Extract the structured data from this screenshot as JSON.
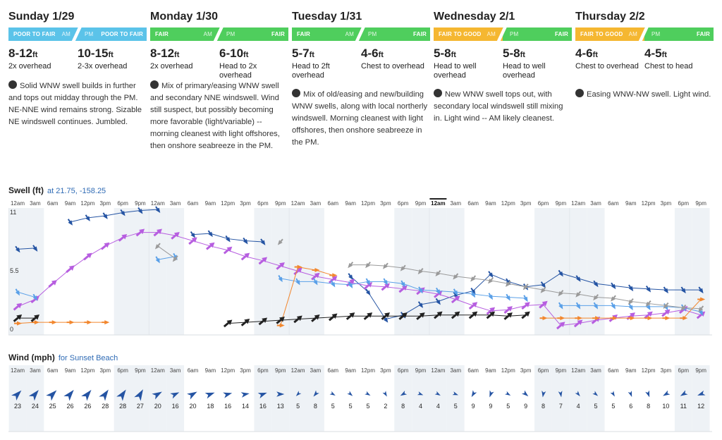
{
  "forecast": {
    "days": [
      {
        "name": "Sunday 1/29",
        "am": {
          "label": "POOR TO FAIR",
          "tag": "AM",
          "color": "#5bc3e9"
        },
        "pm": {
          "label": "POOR TO FAIR",
          "tag": "PM",
          "color": "#5bc3e9"
        },
        "am_size": {
          "range": "8-12",
          "unit": "ft",
          "desc": "2x overhead"
        },
        "pm_size": {
          "range": "10-15",
          "unit": "ft",
          "desc": "2-3x overhead"
        },
        "blurb": "Solid WNW swell builds in further and tops out midday through the PM. NE-NNE wind remains strong. Sizable NE windswell continues. Jumbled."
      },
      {
        "name": "Monday 1/30",
        "am": {
          "label": "FAIR",
          "tag": "AM",
          "color": "#4fce5d"
        },
        "pm": {
          "label": "FAIR",
          "tag": "PM",
          "color": "#4fce5d"
        },
        "am_size": {
          "range": "8-12",
          "unit": "ft",
          "desc": "2x overhead"
        },
        "pm_size": {
          "range": "6-10",
          "unit": "ft",
          "desc": "Head to 2x overhead"
        },
        "blurb": "Mix of primary/easing WNW swell and secondary NNE windswell. Wind still suspect, but possibly becoming more favorable (light/variable) -- morning cleanest with light offshores, then onshore seabreeze in the PM."
      },
      {
        "name": "Tuesday 1/31",
        "am": {
          "label": "FAIR",
          "tag": "AM",
          "color": "#4fce5d"
        },
        "pm": {
          "label": "FAIR",
          "tag": "PM",
          "color": "#4fce5d"
        },
        "am_size": {
          "range": "5-7",
          "unit": "ft",
          "desc": "Head to 2ft overhead"
        },
        "pm_size": {
          "range": "4-6",
          "unit": "ft",
          "desc": "Chest to overhead"
        },
        "blurb": "Mix of old/easing and new/building WNW swells, along with local northerly windswell. Morning cleanest with light offshores, then onshore seabreeze in the PM."
      },
      {
        "name": "Wednesday 2/1",
        "am": {
          "label": "FAIR TO GOOD",
          "tag": "AM",
          "color": "#f5b731"
        },
        "pm": {
          "label": "FAIR",
          "tag": "PM",
          "color": "#4fce5d"
        },
        "am_size": {
          "range": "5-8",
          "unit": "ft",
          "desc": "Head to well overhead"
        },
        "pm_size": {
          "range": "5-8",
          "unit": "ft",
          "desc": "Head to well overhead"
        },
        "blurb": "New WNW swell tops out, with secondary local windswell still mixing in. Light wind -- AM likely cleanest."
      },
      {
        "name": "Thursday 2/2",
        "am": {
          "label": "FAIR TO GOOD",
          "tag": "AM",
          "color": "#f5b731"
        },
        "pm": {
          "label": "FAIR",
          "tag": "PM",
          "color": "#4fce5d"
        },
        "am_size": {
          "range": "4-6",
          "unit": "ft",
          "desc": "Chest to overhead"
        },
        "pm_size": {
          "range": "4-5",
          "unit": "ft",
          "desc": "Chest to head"
        },
        "blurb": "Easing WNW-NW swell. Light wind."
      }
    ]
  },
  "time_labels": [
    "12am",
    "3am",
    "6am",
    "9am",
    "12pm",
    "3pm",
    "6pm",
    "9pm"
  ],
  "current_tick_index": 24,
  "swell": {
    "title": "Swell (ft)",
    "subtitle": "at 21.75, -158.25",
    "y_labels": [
      "11",
      "5.5",
      "0"
    ],
    "ymax": 11,
    "series": [
      {
        "color": "#2554a3",
        "points": [
          [
            0,
            7.6
          ],
          [
            1,
            7.7
          ],
          [
            3,
            10.2
          ],
          [
            4,
            10.6
          ],
          [
            5,
            10.8
          ],
          [
            6,
            11.1
          ],
          [
            7,
            11.3
          ],
          [
            8,
            11.4
          ],
          [
            10,
            9.0
          ],
          [
            11,
            9.1
          ],
          [
            12,
            8.6
          ],
          [
            13,
            8.4
          ],
          [
            14,
            8.3
          ]
        ]
      },
      {
        "color": "#2554a3",
        "points": [
          [
            19,
            5.0
          ],
          [
            20,
            3.5
          ],
          [
            21,
            0.9
          ],
          [
            22,
            1.3
          ],
          [
            23,
            2.3
          ],
          [
            24,
            2.6
          ],
          [
            25,
            3.2
          ],
          [
            26,
            3.6
          ],
          [
            27,
            5.2
          ],
          [
            28,
            4.5
          ],
          [
            29,
            4.0
          ],
          [
            30,
            4.2
          ],
          [
            31,
            5.3
          ],
          [
            32,
            4.8
          ],
          [
            33,
            4.3
          ],
          [
            34,
            4.1
          ],
          [
            35,
            3.9
          ],
          [
            36,
            3.8
          ],
          [
            37,
            3.7
          ],
          [
            38,
            3.7
          ],
          [
            39,
            3.7
          ]
        ]
      },
      {
        "color": "#b75ee0",
        "points": [
          [
            0,
            2.1
          ],
          [
            1,
            2.8
          ],
          [
            2,
            4.3
          ],
          [
            3,
            5.7
          ],
          [
            4,
            6.9
          ],
          [
            5,
            7.9
          ],
          [
            6,
            8.7
          ],
          [
            7,
            9.2
          ],
          [
            8,
            9.2
          ],
          [
            9,
            8.9
          ],
          [
            10,
            8.4
          ],
          [
            11,
            7.9
          ],
          [
            12,
            7.5
          ],
          [
            13,
            6.9
          ],
          [
            14,
            6.5
          ],
          [
            15,
            6.0
          ],
          [
            16,
            5.5
          ],
          [
            17,
            5.0
          ],
          [
            18,
            4.7
          ],
          [
            19,
            4.4
          ],
          [
            20,
            4.1
          ],
          [
            21,
            4.0
          ],
          [
            22,
            3.8
          ],
          [
            23,
            3.6
          ],
          [
            24,
            3.3
          ],
          [
            25,
            2.8
          ],
          [
            26,
            2.2
          ],
          [
            27,
            1.7
          ],
          [
            28,
            1.8
          ],
          [
            29,
            2.2
          ],
          [
            30,
            2.3
          ],
          [
            31,
            0.3
          ],
          [
            32,
            0.5
          ],
          [
            33,
            0.8
          ],
          [
            34,
            1.0
          ],
          [
            35,
            1.2
          ],
          [
            36,
            1.3
          ],
          [
            37,
            1.5
          ],
          [
            38,
            1.8
          ],
          [
            39,
            1.3
          ]
        ]
      },
      {
        "color": "#5aa0e8",
        "points": [
          [
            0,
            3.5
          ],
          [
            1,
            3.0
          ],
          [
            8,
            6.6
          ],
          [
            9,
            6.9
          ],
          [
            15,
            4.8
          ],
          [
            16,
            4.5
          ],
          [
            17,
            4.5
          ],
          [
            18,
            4.3
          ],
          [
            19,
            4.2
          ],
          [
            20,
            4.5
          ],
          [
            21,
            4.5
          ],
          [
            22,
            4.3
          ],
          [
            23,
            3.7
          ],
          [
            24,
            3.6
          ],
          [
            25,
            3.5
          ],
          [
            26,
            3.3
          ],
          [
            27,
            3.1
          ],
          [
            28,
            3.0
          ],
          [
            29,
            2.9
          ],
          [
            31,
            2.2
          ],
          [
            32,
            2.2
          ],
          [
            33,
            2.2
          ],
          [
            34,
            2.2
          ],
          [
            35,
            2.1
          ],
          [
            36,
            2.1
          ],
          [
            37,
            2.1
          ],
          [
            38,
            2.0
          ],
          [
            39,
            1.6
          ]
        ]
      },
      {
        "color": "#9a9a9a",
        "points": [
          [
            8,
            7.9
          ],
          [
            9,
            6.7
          ],
          [
            15,
            8.3
          ],
          [
            19,
            6.1
          ],
          [
            20,
            6.1
          ],
          [
            21,
            6.0
          ],
          [
            22,
            5.8
          ],
          [
            23,
            5.5
          ],
          [
            24,
            5.3
          ],
          [
            25,
            5.0
          ],
          [
            26,
            4.8
          ],
          [
            27,
            4.6
          ],
          [
            28,
            4.3
          ],
          [
            29,
            4.0
          ],
          [
            30,
            3.7
          ],
          [
            31,
            3.4
          ],
          [
            32,
            3.3
          ],
          [
            33,
            3.0
          ],
          [
            34,
            2.9
          ],
          [
            35,
            2.6
          ],
          [
            36,
            2.4
          ],
          [
            37,
            2.2
          ],
          [
            38,
            2.0
          ],
          [
            39,
            1.9
          ]
        ]
      },
      {
        "color": "#f2872e",
        "points": [
          [
            0,
            0.5
          ],
          [
            1,
            0.6
          ],
          [
            2,
            0.6
          ],
          [
            3,
            0.6
          ],
          [
            4,
            0.6
          ],
          [
            5,
            0.6
          ],
          [
            15,
            0.3
          ],
          [
            16,
            5.9
          ],
          [
            17,
            5.6
          ],
          [
            18,
            5.1
          ],
          [
            30,
            1.0
          ],
          [
            31,
            1.0
          ],
          [
            32,
            1.0
          ],
          [
            33,
            1.0
          ],
          [
            34,
            1.0
          ],
          [
            35,
            1.0
          ],
          [
            36,
            1.0
          ],
          [
            37,
            1.0
          ],
          [
            38,
            1.0
          ],
          [
            39,
            2.8
          ]
        ]
      },
      {
        "color": "#222222",
        "points": [
          [
            0,
            1.0
          ],
          [
            1,
            1.0
          ],
          [
            12,
            0.5
          ],
          [
            13,
            0.6
          ],
          [
            14,
            0.7
          ],
          [
            15,
            0.8
          ],
          [
            16,
            0.9
          ],
          [
            17,
            1.0
          ],
          [
            18,
            1.1
          ],
          [
            19,
            1.2
          ],
          [
            20,
            1.2
          ],
          [
            21,
            1.2
          ],
          [
            22,
            1.2
          ],
          [
            23,
            1.2
          ],
          [
            24,
            1.3
          ],
          [
            25,
            1.3
          ],
          [
            26,
            1.3
          ],
          [
            27,
            1.3
          ],
          [
            28,
            1.2
          ],
          [
            29,
            1.3
          ]
        ]
      }
    ]
  },
  "wind": {
    "title": "Wind (mph)",
    "subtitle": "for Sunset Beach",
    "color": "#2554a3",
    "values": [
      23,
      24,
      25,
      26,
      26,
      28,
      28,
      27,
      20,
      16,
      20,
      18,
      16,
      14,
      16,
      13,
      5,
      8,
      5,
      5,
      5,
      2,
      8,
      4,
      4,
      5,
      9,
      9,
      5,
      9,
      8,
      7,
      4,
      5,
      5,
      6,
      8,
      10,
      11,
      12
    ],
    "directions": [
      225,
      220,
      225,
      220,
      220,
      215,
      215,
      210,
      240,
      245,
      240,
      250,
      255,
      260,
      250,
      270,
      45,
      40,
      300,
      310,
      300,
      330,
      60,
      290,
      300,
      290,
      30,
      20,
      300,
      310,
      10,
      350,
      320,
      310,
      330,
      340,
      340,
      60,
      60,
      70
    ]
  }
}
